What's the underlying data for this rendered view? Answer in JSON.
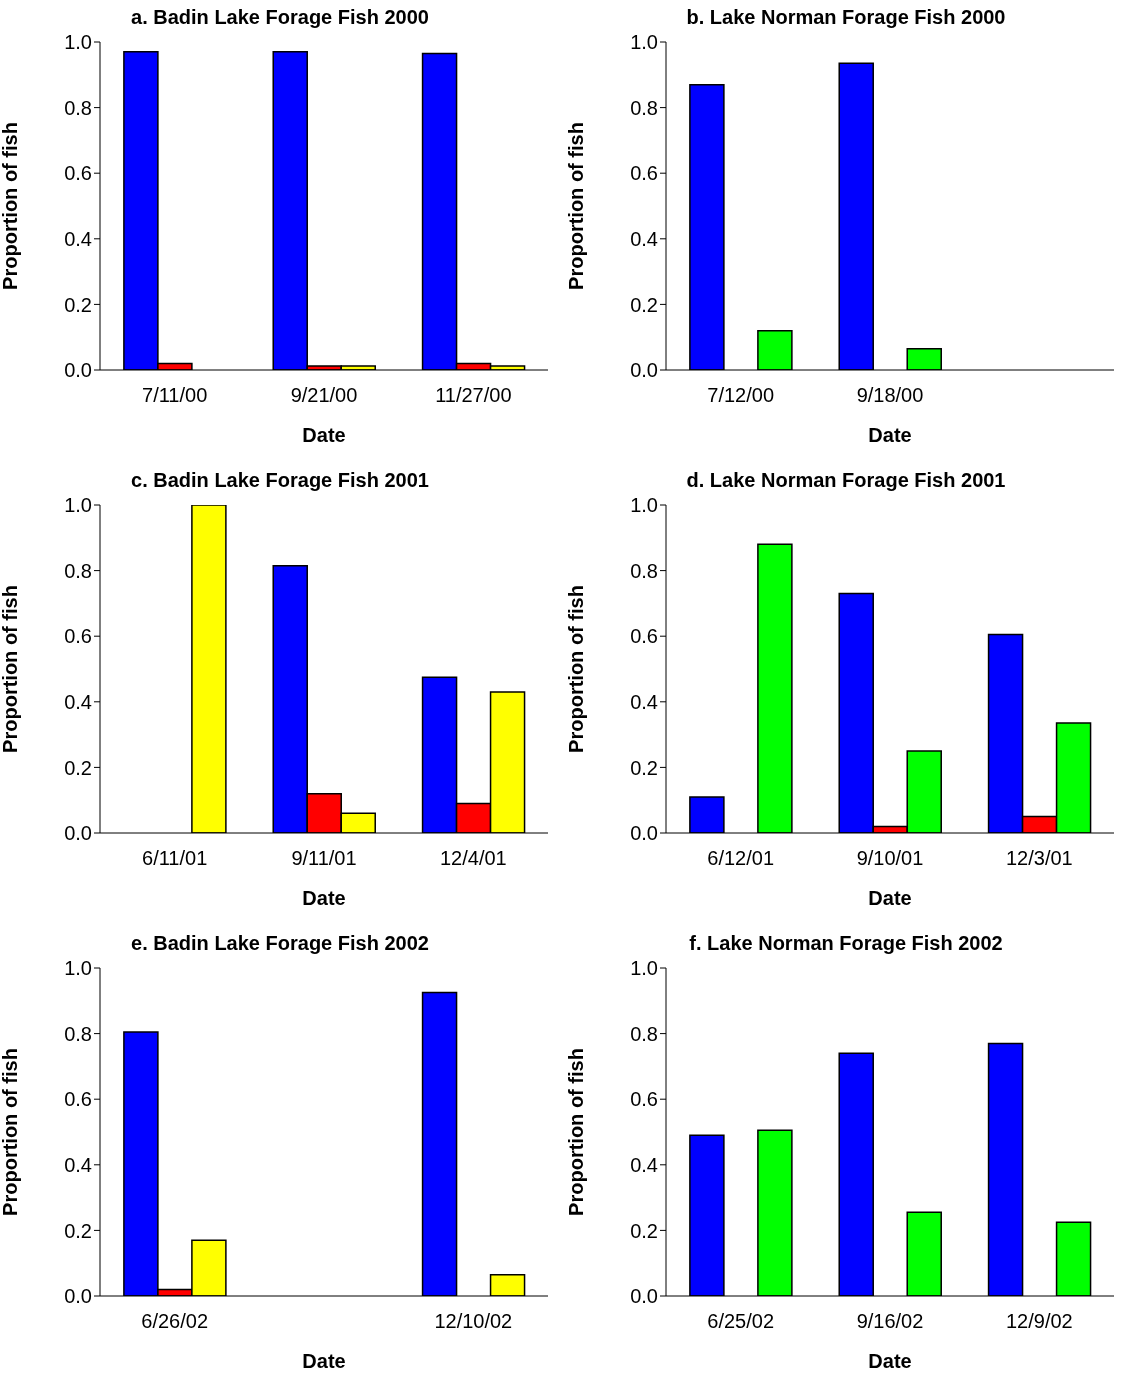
{
  "chart_data": [
    {
      "type": "bar",
      "title": "a. Badin Lake Forage Fish 2000",
      "xlabel": "Date",
      "ylabel": "Proportion of fish",
      "categories": [
        "7/11/00",
        "9/21/00",
        "11/27/00"
      ],
      "series": [
        {
          "color": "#0000ff",
          "values": [
            0.97,
            0.97,
            0.965
          ]
        },
        {
          "color": "#ff0000",
          "values": [
            0.02,
            0.012,
            0.02
          ]
        },
        {
          "color": "#ffff00",
          "values": [
            null,
            0.012,
            0.012
          ]
        }
      ],
      "ylim": [
        0,
        1
      ],
      "yticks": [
        {
          "value": 0,
          "label": "0.0"
        },
        {
          "value": 0.2,
          "label": "0.2"
        },
        {
          "value": 0.4,
          "label": "0.4"
        },
        {
          "value": 0.6,
          "label": "0.6"
        },
        {
          "value": 0.8,
          "label": "0.8"
        },
        {
          "value": 1,
          "label": "1.0"
        }
      ],
      "grid": false,
      "legend": false
    },
    {
      "type": "bar",
      "title": "b. Lake Norman Forage Fish 2000",
      "xlabel": "Date",
      "ylabel": "Proportion of fish",
      "categories": [
        "7/12/00",
        "9/18/00",
        null
      ],
      "series": [
        {
          "color": "#0000ff",
          "values": [
            0.87,
            0.935,
            null
          ]
        },
        {
          "color": "#ff0000",
          "values": [
            null,
            null,
            null
          ]
        },
        {
          "color": "#00ff00",
          "values": [
            0.12,
            0.065,
            null
          ]
        }
      ],
      "ylim": [
        0,
        1
      ],
      "yticks": [
        {
          "value": 0,
          "label": "0.0"
        },
        {
          "value": 0.2,
          "label": "0.2"
        },
        {
          "value": 0.4,
          "label": "0.4"
        },
        {
          "value": 0.6,
          "label": "0.6"
        },
        {
          "value": 0.8,
          "label": "0.8"
        },
        {
          "value": 1,
          "label": "1.0"
        }
      ],
      "grid": false,
      "legend": false
    },
    {
      "type": "bar",
      "title": "c. Badin Lake Forage Fish 2001",
      "xlabel": "Date",
      "ylabel": "Proportion of fish",
      "categories": [
        "6/11/01",
        "9/11/01",
        "12/4/01"
      ],
      "series": [
        {
          "color": "#0000ff",
          "values": [
            null,
            0.815,
            0.475
          ]
        },
        {
          "color": "#ff0000",
          "values": [
            null,
            0.12,
            0.09
          ]
        },
        {
          "color": "#ffff00",
          "values": [
            1.0,
            0.06,
            0.43
          ]
        }
      ],
      "ylim": [
        0,
        1
      ],
      "yticks": [
        {
          "value": 0,
          "label": "0.0"
        },
        {
          "value": 0.2,
          "label": "0.2"
        },
        {
          "value": 0.4,
          "label": "0.4"
        },
        {
          "value": 0.6,
          "label": "0.6"
        },
        {
          "value": 0.8,
          "label": "0.8"
        },
        {
          "value": 1,
          "label": "1.0"
        }
      ],
      "grid": false,
      "legend": false
    },
    {
      "type": "bar",
      "title": "d. Lake Norman Forage Fish 2001",
      "xlabel": "Date",
      "ylabel": "Proportion of fish",
      "categories": [
        "6/12/01",
        "9/10/01",
        "12/3/01"
      ],
      "series": [
        {
          "color": "#0000ff",
          "values": [
            0.11,
            0.73,
            0.605
          ]
        },
        {
          "color": "#ff0000",
          "values": [
            null,
            0.02,
            0.05
          ]
        },
        {
          "color": "#00ff00",
          "values": [
            0.88,
            0.25,
            0.335
          ]
        }
      ],
      "ylim": [
        0,
        1
      ],
      "yticks": [
        {
          "value": 0,
          "label": "0.0"
        },
        {
          "value": 0.2,
          "label": "0.2"
        },
        {
          "value": 0.4,
          "label": "0.4"
        },
        {
          "value": 0.6,
          "label": "0.6"
        },
        {
          "value": 0.8,
          "label": "0.8"
        },
        {
          "value": 1,
          "label": "1.0"
        }
      ],
      "grid": false,
      "legend": false
    },
    {
      "type": "bar",
      "title": "e. Badin Lake Forage Fish 2002",
      "xlabel": "Date",
      "ylabel": "Proportion of fish",
      "categories": [
        "6/26/02",
        null,
        "12/10/02"
      ],
      "series": [
        {
          "color": "#0000ff",
          "values": [
            0.805,
            null,
            0.925
          ]
        },
        {
          "color": "#ff0000",
          "values": [
            0.02,
            null,
            null
          ]
        },
        {
          "color": "#ffff00",
          "values": [
            0.17,
            null,
            0.065
          ]
        }
      ],
      "ylim": [
        0,
        1
      ],
      "yticks": [
        {
          "value": 0,
          "label": "0.0"
        },
        {
          "value": 0.2,
          "label": "0.2"
        },
        {
          "value": 0.4,
          "label": "0.4"
        },
        {
          "value": 0.6,
          "label": "0.6"
        },
        {
          "value": 0.8,
          "label": "0.8"
        },
        {
          "value": 1,
          "label": "1.0"
        }
      ],
      "grid": false,
      "legend": false
    },
    {
      "type": "bar",
      "title": "f. Lake Norman Forage Fish 2002",
      "xlabel": "Date",
      "ylabel": "Proportion of fish",
      "categories": [
        "6/25/02",
        "9/16/02",
        "12/9/02"
      ],
      "series": [
        {
          "color": "#0000ff",
          "values": [
            0.49,
            0.74,
            0.77
          ]
        },
        {
          "color": "#ff0000",
          "values": [
            null,
            null,
            null
          ]
        },
        {
          "color": "#00ff00",
          "values": [
            0.505,
            0.255,
            0.225
          ]
        }
      ],
      "ylim": [
        0,
        1
      ],
      "yticks": [
        {
          "value": 0,
          "label": "0.0"
        },
        {
          "value": 0.2,
          "label": "0.2"
        },
        {
          "value": 0.4,
          "label": "0.4"
        },
        {
          "value": 0.6,
          "label": "0.6"
        },
        {
          "value": 0.8,
          "label": "0.8"
        },
        {
          "value": 1,
          "label": "1.0"
        }
      ],
      "grid": false,
      "legend": false
    }
  ]
}
